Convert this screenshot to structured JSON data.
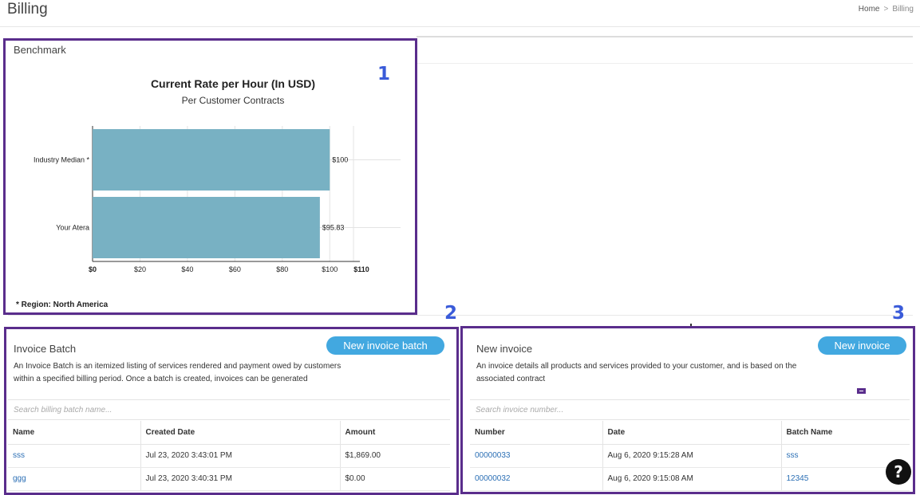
{
  "header": {
    "title": "Billing",
    "breadcrumb": [
      {
        "label": "Home"
      },
      {
        "separator": ">"
      },
      {
        "label": "Billing"
      }
    ]
  },
  "annotations": [
    "1",
    "2",
    "3"
  ],
  "benchmark": {
    "section_title": "Benchmark",
    "region_note": "* Region: North America"
  },
  "chart_data": {
    "type": "bar",
    "orientation": "horizontal",
    "title": "Current Rate per Hour (In USD)",
    "subtitle": "Per Customer Contracts",
    "categories": [
      "Industry Median *",
      "Your Atera"
    ],
    "values": [
      100,
      95.83
    ],
    "value_labels": [
      "$100",
      "$95.83"
    ],
    "xlim": [
      0,
      110
    ],
    "x_ticks": [
      0,
      20,
      40,
      60,
      80,
      100,
      110
    ],
    "x_tick_labels": [
      "$0",
      "$20",
      "$40",
      "$60",
      "$80",
      "$100",
      "$110"
    ],
    "bar_color": "#78b1c3",
    "grid": true
  },
  "invoice_batch": {
    "title": "Invoice Batch",
    "button_label": "New invoice batch",
    "description_line1": "An Invoice Batch is an itemized listing of services rendered and payment owed by customers",
    "description_line2": "within a specified billing period. Once a batch is created, invoices can be generated",
    "search_placeholder": "Search billing batch name...",
    "columns": [
      "Name",
      "Created Date",
      "Amount"
    ],
    "rows": [
      [
        "sss",
        "Jul 23, 2020 3:43:01 PM",
        "$1,869.00"
      ],
      [
        "ggg",
        "Jul 23, 2020 3:40:31 PM",
        "$0.00"
      ]
    ]
  },
  "new_invoice": {
    "title": "New invoice",
    "button_label": "New invoice",
    "description_line1": "An invoice details all products and services provided to your customer, and is based on the",
    "description_line2": "associated contract",
    "search_placeholder": "Search invoice number...",
    "columns": [
      "Number",
      "Date",
      "Batch Name"
    ],
    "rows": [
      [
        "00000033",
        "Aug 6, 2020 9:15:28 AM",
        "sss"
      ],
      [
        "00000032",
        "Aug 6, 2020 9:15:08 AM",
        "12345"
      ]
    ]
  },
  "help": {
    "glyph": "?"
  },
  "colors": {
    "accent": "#42a8e0",
    "frame": "#5a2d8c",
    "annotation": "#3a5bd9",
    "link": "#2b6fb5"
  }
}
